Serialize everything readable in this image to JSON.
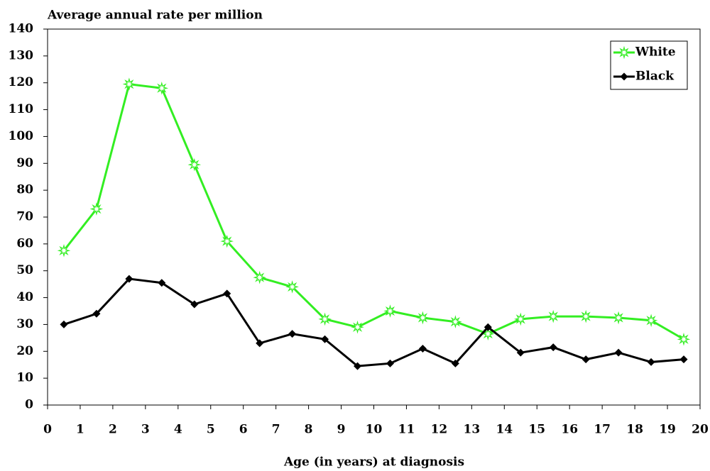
{
  "chart_data": {
    "type": "line",
    "y_label": "Average annual rate per million",
    "x_label": "Age (in years) at diagnosis",
    "x": [
      0.5,
      1.5,
      2.5,
      3.5,
      4.5,
      5.5,
      6.5,
      7.5,
      8.5,
      9.5,
      10.5,
      11.5,
      12.5,
      13.5,
      14.5,
      15.5,
      16.5,
      17.5,
      18.5,
      19.5
    ],
    "series": [
      {
        "name": "White",
        "color": "#33ee22",
        "marker": "star",
        "values": [
          57.5,
          73,
          119.5,
          118,
          89.5,
          61,
          47.5,
          44,
          32,
          29,
          35,
          32.5,
          31,
          26.5,
          32,
          33,
          33,
          32.5,
          31.5,
          24.5
        ]
      },
      {
        "name": "Black",
        "color": "#000000",
        "marker": "diamond",
        "values": [
          30,
          34,
          47,
          45.5,
          37.5,
          41.5,
          23,
          26.5,
          24.5,
          14.5,
          15.5,
          21,
          15.5,
          29,
          19.5,
          21.5,
          17,
          19.5,
          16,
          17
        ]
      }
    ],
    "xlim": [
      0,
      20
    ],
    "xticks": [
      0,
      1,
      2,
      3,
      4,
      5,
      6,
      7,
      8,
      9,
      10,
      11,
      12,
      13,
      14,
      15,
      16,
      17,
      18,
      19,
      20
    ],
    "ylim": [
      0,
      140
    ],
    "yticks": [
      0,
      10,
      20,
      30,
      40,
      50,
      60,
      70,
      80,
      90,
      100,
      110,
      120,
      130,
      140
    ],
    "legend": "upper right"
  }
}
